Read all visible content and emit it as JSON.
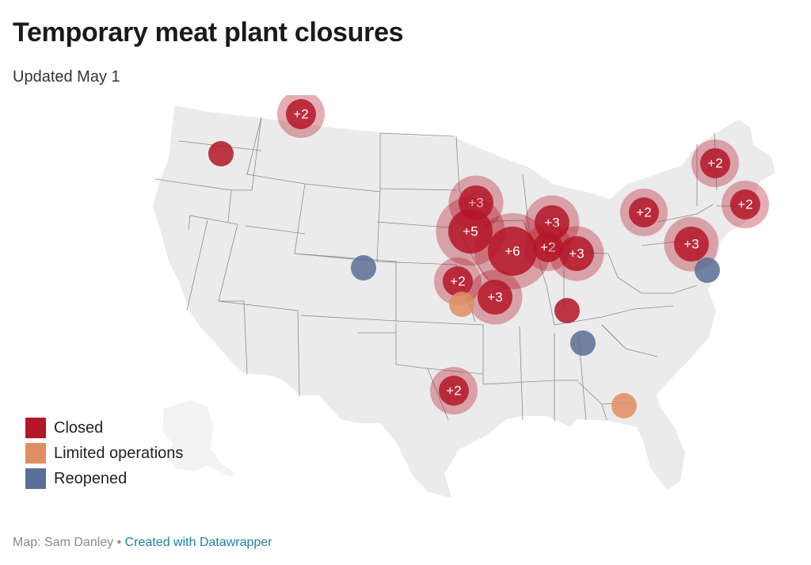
{
  "header": {
    "title": "Temporary meat plant closures",
    "subtitle": "Updated May 1"
  },
  "colors": {
    "closed": "#b41528",
    "limited": "#e08d62",
    "reopened": "#5a6f97",
    "land": "#ebebeb",
    "border": "#8a8a8a"
  },
  "legend": [
    {
      "label": "Closed",
      "status": "closed"
    },
    {
      "label": "Limited operations",
      "status": "limited"
    },
    {
      "label": "Reopened",
      "status": "reopened"
    }
  ],
  "markers": [
    {
      "status": "closed",
      "count": "+2",
      "region": "Montana"
    },
    {
      "status": "closed",
      "count": "",
      "region": "Washington"
    },
    {
      "status": "closed",
      "count": "+2",
      "region": "Maine / New Hampshire"
    },
    {
      "status": "closed",
      "count": "+2",
      "region": "Massachusetts"
    },
    {
      "status": "closed",
      "count": "+2",
      "region": "Pennsylvania"
    },
    {
      "status": "closed",
      "count": "+3",
      "region": "Pennsylvania / New Jersey"
    },
    {
      "status": "reopened",
      "count": "",
      "region": "Delaware / Maryland"
    },
    {
      "status": "closed",
      "count": "+3",
      "region": "Minnesota"
    },
    {
      "status": "closed",
      "count": "+5",
      "region": "Iowa / South Dakota"
    },
    {
      "status": "closed",
      "count": "+6",
      "region": "Iowa"
    },
    {
      "status": "closed",
      "count": "+3",
      "region": "Illinois"
    },
    {
      "status": "closed",
      "count": "+2",
      "region": "Illinois"
    },
    {
      "status": "closed",
      "count": "+3",
      "region": "Indiana"
    },
    {
      "status": "closed",
      "count": "+2",
      "region": "Nebraska / Kansas"
    },
    {
      "status": "closed",
      "count": "+3",
      "region": "Missouri"
    },
    {
      "status": "limited",
      "count": "",
      "region": "Kansas"
    },
    {
      "status": "closed",
      "count": "",
      "region": "Kentucky"
    },
    {
      "status": "reopened",
      "count": "",
      "region": "Colorado"
    },
    {
      "status": "reopened",
      "count": "",
      "region": "Alabama"
    },
    {
      "status": "closed",
      "count": "+2",
      "region": "Texas"
    },
    {
      "status": "limited",
      "count": "",
      "region": "Georgia / Florida"
    }
  ],
  "footer": {
    "credit": "Map: Sam Danley",
    "separator": " • ",
    "link": "Created with Datawrapper"
  }
}
